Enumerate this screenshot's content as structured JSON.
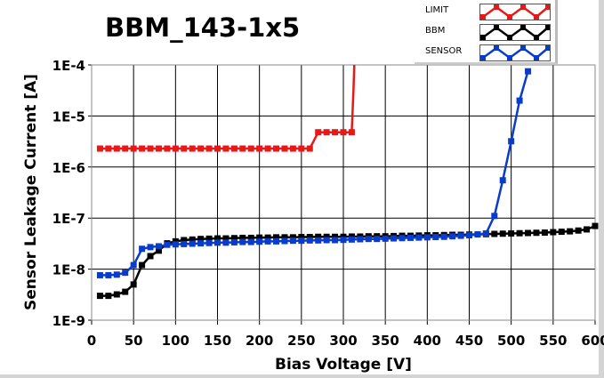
{
  "chart_data": {
    "type": "line",
    "title": "BBM_143-1x5",
    "xlabel": "Bias Voltage [V]",
    "ylabel": "Sensor Leakage Current [A]",
    "xlim": [
      0,
      600
    ],
    "ylim": [
      1e-09,
      0.0001
    ],
    "yscale": "log",
    "grid": true,
    "legend_position": "top-right",
    "x_ticks": [
      "0",
      "50",
      "100",
      "150",
      "200",
      "250",
      "300",
      "350",
      "400",
      "450",
      "500",
      "550",
      "600"
    ],
    "y_ticks": [
      "1E-9",
      "1E-8",
      "1E-7",
      "1E-6",
      "1E-5",
      "1E-4"
    ],
    "series": [
      {
        "name": "LIMIT",
        "color": "#e81818",
        "x": [
          10,
          20,
          30,
          40,
          50,
          60,
          70,
          80,
          90,
          100,
          110,
          120,
          130,
          140,
          150,
          160,
          170,
          180,
          190,
          200,
          210,
          220,
          230,
          240,
          250,
          260,
          270,
          280,
          290,
          300,
          310,
          312,
          313
        ],
        "y": [
          2.3e-06,
          2.3e-06,
          2.3e-06,
          2.3e-06,
          2.3e-06,
          2.3e-06,
          2.3e-06,
          2.3e-06,
          2.3e-06,
          2.3e-06,
          2.3e-06,
          2.3e-06,
          2.3e-06,
          2.3e-06,
          2.3e-06,
          2.3e-06,
          2.3e-06,
          2.3e-06,
          2.3e-06,
          2.3e-06,
          2.3e-06,
          2.3e-06,
          2.3e-06,
          2.3e-06,
          2.3e-06,
          2.3e-06,
          4.8e-06,
          4.8e-06,
          4.8e-06,
          4.8e-06,
          4.8e-06,
          3e-05,
          0.0001
        ]
      },
      {
        "name": "BBM",
        "color": "#000000",
        "x": [
          10,
          20,
          30,
          40,
          50,
          60,
          70,
          80,
          90,
          100,
          110,
          120,
          130,
          140,
          150,
          160,
          170,
          180,
          190,
          200,
          210,
          220,
          230,
          240,
          250,
          260,
          270,
          280,
          290,
          300,
          310,
          320,
          330,
          340,
          350,
          360,
          370,
          380,
          390,
          400,
          410,
          420,
          430,
          440,
          450,
          460,
          470,
          480,
          490,
          500,
          510,
          520,
          530,
          540,
          550,
          560,
          570,
          580,
          590,
          600
        ],
        "y": [
          3e-09,
          3e-09,
          3.2e-09,
          3.6e-09,
          5e-09,
          1.2e-08,
          1.8e-08,
          2.3e-08,
          3.2e-08,
          3.5e-08,
          3.7e-08,
          3.8e-08,
          3.9e-08,
          3.95e-08,
          4e-08,
          4e-08,
          4.05e-08,
          4.1e-08,
          4.1e-08,
          4.15e-08,
          4.15e-08,
          4.2e-08,
          4.2e-08,
          4.2e-08,
          4.25e-08,
          4.25e-08,
          4.3e-08,
          4.3e-08,
          4.3e-08,
          4.3e-08,
          4.35e-08,
          4.35e-08,
          4.4e-08,
          4.4e-08,
          4.4e-08,
          4.45e-08,
          4.5e-08,
          4.5e-08,
          4.55e-08,
          4.6e-08,
          4.6e-08,
          4.65e-08,
          4.7e-08,
          4.7e-08,
          4.75e-08,
          4.8e-08,
          4.85e-08,
          4.9e-08,
          4.95e-08,
          5e-08,
          5.05e-08,
          5.1e-08,
          5.15e-08,
          5.2e-08,
          5.3e-08,
          5.4e-08,
          5.5e-08,
          5.7e-08,
          6e-08,
          7e-08
        ]
      },
      {
        "name": "SENSOR",
        "color": "#0a3ccc",
        "x": [
          10,
          20,
          30,
          40,
          50,
          60,
          70,
          80,
          90,
          100,
          110,
          120,
          130,
          140,
          150,
          160,
          170,
          180,
          190,
          200,
          210,
          220,
          230,
          240,
          250,
          260,
          270,
          280,
          290,
          300,
          310,
          320,
          330,
          340,
          350,
          360,
          370,
          380,
          390,
          400,
          410,
          420,
          430,
          440,
          450,
          460,
          470,
          480,
          490,
          500,
          510,
          520
        ],
        "y": [
          7.6e-09,
          7.6e-09,
          7.8e-09,
          8.5e-09,
          1.2e-08,
          2.5e-08,
          2.7e-08,
          2.8e-08,
          3e-08,
          3.05e-08,
          3.1e-08,
          3.15e-08,
          3.2e-08,
          3.25e-08,
          3.3e-08,
          3.3e-08,
          3.35e-08,
          3.4e-08,
          3.4e-08,
          3.45e-08,
          3.5e-08,
          3.5e-08,
          3.55e-08,
          3.6e-08,
          3.6e-08,
          3.65e-08,
          3.65e-08,
          3.7e-08,
          3.7e-08,
          3.75e-08,
          3.8e-08,
          3.85e-08,
          3.9e-08,
          3.9e-08,
          3.95e-08,
          4e-08,
          4.05e-08,
          4.1e-08,
          4.15e-08,
          4.2e-08,
          4.25e-08,
          4.3e-08,
          4.4e-08,
          4.5e-08,
          4.6e-08,
          4.8e-08,
          5e-08,
          1.1e-07,
          5.5e-07,
          3.2e-06,
          2e-05,
          7.5e-05
        ]
      }
    ]
  }
}
